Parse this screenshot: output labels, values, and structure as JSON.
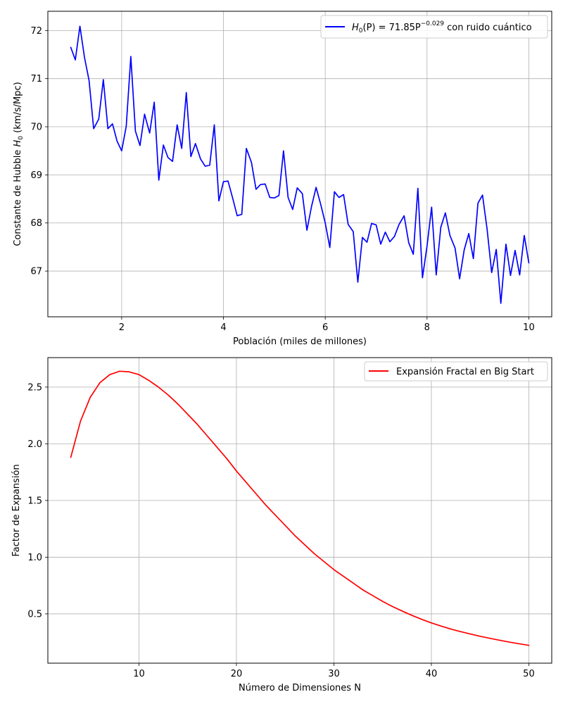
{
  "chart_data": [
    {
      "type": "line",
      "title": "",
      "xlabel": "Población (miles de millones)",
      "ylabel_prefix": "Constante de Hubble ",
      "ylabel_symbol": "H",
      "ylabel_subscript": "0",
      "ylabel_suffix": " (km/s/Mpc)",
      "xlim": [
        0.55,
        10.45
      ],
      "ylim": [
        66.05,
        72.4
      ],
      "xticks": [
        2,
        4,
        6,
        8,
        10
      ],
      "yticks": [
        67,
        68,
        69,
        70,
        71,
        72
      ],
      "grid": true,
      "legend_position": "top-right",
      "series": [
        {
          "legend": {
            "h": "H",
            "sub": "0",
            "mid": "(P) = 71.85P",
            "sup": "−0.029",
            "tail": " con ruido cuántico"
          },
          "color": "#0000ff",
          "x": [
            1.0,
            1.09,
            1.18,
            1.27,
            1.36,
            1.45,
            1.55,
            1.64,
            1.73,
            1.82,
            1.91,
            2.0,
            2.09,
            2.18,
            2.27,
            2.36,
            2.45,
            2.55,
            2.64,
            2.73,
            2.82,
            2.91,
            3.0,
            3.09,
            3.18,
            3.27,
            3.36,
            3.45,
            3.55,
            3.64,
            3.73,
            3.82,
            3.91,
            4.0,
            4.09,
            4.18,
            4.27,
            4.36,
            4.45,
            4.55,
            4.64,
            4.73,
            4.82,
            4.91,
            5.0,
            5.09,
            5.18,
            5.27,
            5.36,
            5.45,
            5.55,
            5.64,
            5.73,
            5.82,
            5.91,
            6.0,
            6.09,
            6.18,
            6.27,
            6.36,
            6.45,
            6.55,
            6.64,
            6.73,
            6.82,
            6.91,
            7.0,
            7.09,
            7.18,
            7.27,
            7.36,
            7.45,
            7.55,
            7.64,
            7.73,
            7.82,
            7.91,
            8.0,
            8.09,
            8.18,
            8.27,
            8.36,
            8.45,
            8.55,
            8.64,
            8.73,
            8.82,
            8.91,
            9.0,
            9.09,
            9.18,
            9.27,
            9.36,
            9.45,
            9.55,
            9.64,
            9.73,
            9.82,
            9.91,
            10.0
          ],
          "y": [
            71.65,
            71.39,
            72.09,
            71.44,
            70.96,
            69.96,
            70.16,
            70.98,
            69.96,
            70.06,
            69.7,
            69.5,
            70.01,
            71.46,
            69.91,
            69.61,
            70.26,
            69.87,
            70.51,
            68.89,
            69.62,
            69.36,
            69.28,
            70.04,
            69.55,
            70.71,
            69.38,
            69.65,
            69.33,
            69.18,
            69.2,
            70.04,
            68.46,
            68.86,
            68.87,
            68.52,
            68.15,
            68.18,
            69.55,
            69.26,
            68.7,
            68.8,
            68.81,
            68.53,
            68.52,
            68.57,
            69.5,
            68.53,
            68.28,
            68.73,
            68.61,
            67.85,
            68.34,
            68.74,
            68.39,
            68.0,
            67.49,
            68.65,
            68.53,
            68.59,
            67.97,
            67.82,
            66.77,
            67.7,
            67.6,
            67.99,
            67.96,
            67.56,
            67.81,
            67.61,
            67.72,
            67.97,
            68.15,
            67.59,
            67.35,
            68.72,
            66.86,
            67.52,
            68.33,
            66.92,
            67.91,
            68.21,
            67.74,
            67.48,
            66.84,
            67.44,
            67.78,
            67.26,
            68.41,
            68.58,
            67.87,
            66.97,
            67.45,
            66.33,
            67.56,
            66.91,
            67.43,
            66.92,
            67.74,
            67.17
          ]
        }
      ]
    },
    {
      "type": "line",
      "title": "",
      "xlabel": "Número de Dimensiones N",
      "ylabel": "Factor de Expansión",
      "xlim": [
        0.65,
        52.35
      ],
      "ylim": [
        0.065,
        2.76
      ],
      "xticks": [
        10,
        20,
        30,
        40,
        50
      ],
      "yticks": [
        0.5,
        1.0,
        1.5,
        2.0,
        2.5
      ],
      "ytick_labels": [
        "0.5",
        "1.0",
        "1.5",
        "2.0",
        "2.5"
      ],
      "grid": true,
      "legend_position": "top-right",
      "series": [
        {
          "name": "Expansión Fractal en Big Start",
          "color": "#ff0000",
          "x": [
            3,
            4,
            5,
            6,
            7,
            8,
            9,
            10,
            11,
            12,
            13,
            14,
            15,
            16,
            17,
            18,
            19,
            20,
            21,
            22,
            23,
            24,
            25,
            26,
            27,
            28,
            29,
            30,
            31,
            32,
            33,
            34,
            35,
            36,
            37,
            38,
            39,
            40,
            41,
            42,
            43,
            44,
            45,
            46,
            47,
            48,
            49,
            50
          ],
          "y": [
            1.88,
            2.2,
            2.41,
            2.54,
            2.61,
            2.64,
            2.635,
            2.61,
            2.56,
            2.5,
            2.43,
            2.35,
            2.26,
            2.17,
            2.07,
            1.97,
            1.87,
            1.76,
            1.66,
            1.56,
            1.46,
            1.37,
            1.28,
            1.19,
            1.11,
            1.03,
            0.96,
            0.89,
            0.83,
            0.77,
            0.71,
            0.66,
            0.61,
            0.565,
            0.525,
            0.487,
            0.452,
            0.42,
            0.392,
            0.366,
            0.343,
            0.322,
            0.302,
            0.284,
            0.267,
            0.251,
            0.236,
            0.222
          ]
        }
      ]
    }
  ]
}
